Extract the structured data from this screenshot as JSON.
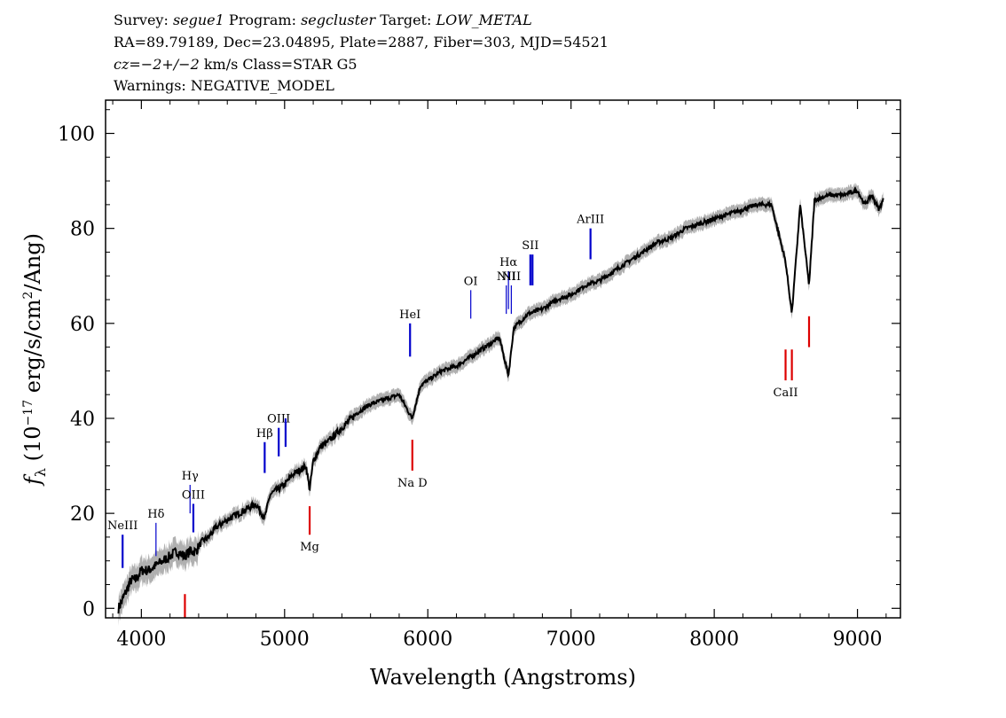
{
  "header": {
    "survey_label": "Survey:",
    "survey": "segue1",
    "program_label": "Program:",
    "program": "segcluster",
    "target_label": "Target:",
    "target": "LOW_METAL",
    "line2": "RA=89.79189, Dec=23.04895, Plate=2887, Fiber=303, MJD=54521",
    "cz_value": "cz=−2+/−2",
    "cz_rest": " km/s Class=STAR G5",
    "warnings": "Warnings: NEGATIVE_MODEL"
  },
  "colors": {
    "emission": "#0000cc",
    "absorption": "#dd0000",
    "spectrum": "#000000",
    "error_band": "#b0b0b0"
  },
  "chart_data": {
    "type": "line",
    "xlabel": "Wavelength (Angstroms)",
    "ylabel_main": "f",
    "ylabel_sub": "λ",
    "ylabel_rest": " (10",
    "ylabel_exp": "−17",
    "ylabel_tail": " erg/s/cm",
    "ylabel_exp2": "2",
    "ylabel_end": "/Ang)",
    "xlim": [
      3750,
      9300
    ],
    "ylim": [
      -2,
      107
    ],
    "xticks": [
      4000,
      5000,
      6000,
      7000,
      8000,
      9000
    ],
    "yticks": [
      0,
      20,
      40,
      60,
      80,
      100
    ],
    "series": [
      {
        "x": [
          3840,
          3870,
          3900,
          3930,
          3960,
          4000,
          4050,
          4100,
          4150,
          4200,
          4250,
          4300,
          4340,
          4380,
          4420,
          4470,
          4520,
          4570,
          4620,
          4680,
          4740,
          4800,
          4861,
          4900,
          4950,
          5000,
          5050,
          5100,
          5150,
          5175,
          5200,
          5250,
          5300,
          5400,
          5500,
          5600,
          5700,
          5800,
          5890,
          5950,
          6000,
          6100,
          6200,
          6300,
          6400,
          6500,
          6563,
          6600,
          6700,
          6800,
          6900,
          7000,
          7100,
          7200,
          7300,
          7400,
          7500,
          7600,
          7700,
          7800,
          7900,
          8000,
          8100,
          8200,
          8300,
          8400,
          8498,
          8542,
          8600,
          8662,
          8700,
          8800,
          8900,
          9000,
          9050,
          9100,
          9150,
          9180
        ],
        "y": [
          0,
          2,
          4,
          6,
          6,
          8,
          8,
          9,
          10,
          11,
          12,
          11,
          12,
          12,
          14,
          15,
          17,
          18,
          19,
          20,
          21,
          22,
          19,
          24,
          25,
          26,
          28,
          29,
          30,
          25,
          31,
          34,
          35,
          38,
          41,
          43,
          44,
          45,
          40,
          47,
          48,
          50,
          51,
          53,
          55,
          57,
          49,
          59,
          62,
          63,
          65,
          66,
          68,
          69,
          71,
          73,
          75,
          77,
          78,
          80,
          81,
          82,
          83,
          84,
          85,
          85,
          73,
          62,
          85,
          68,
          86,
          87,
          87,
          88,
          85,
          87,
          84,
          86
        ]
      }
    ],
    "emission_lines": [
      {
        "label": "NeIII",
        "x": 3869,
        "y1": 8.5,
        "y2": 15.5
      },
      {
        "label": "Hδ",
        "x": 4102,
        "y1": 11,
        "y2": 18
      },
      {
        "label": "Hγ",
        "x": 4340,
        "y1": 20,
        "y2": 26
      },
      {
        "label": "OIII",
        "x": 4363,
        "y1": 16,
        "y2": 22
      },
      {
        "label": "Hβ",
        "x": 4861,
        "y1": 28.5,
        "y2": 35
      },
      {
        "label": "OIII",
        "x": 4959,
        "y1": 32,
        "y2": 38
      },
      {
        "label": "",
        "x": 5007,
        "y1": 34,
        "y2": 40
      },
      {
        "label": "HeI",
        "x": 5876,
        "y1": 53,
        "y2": 60
      },
      {
        "label": "OI",
        "x": 6300,
        "y1": 61,
        "y2": 67
      },
      {
        "label": "NII",
        "x": 6548,
        "y1": 62,
        "y2": 68
      },
      {
        "label": "Hα",
        "x": 6563,
        "y1": 63,
        "y2": 71
      },
      {
        "label": "NII",
        "x": 6583,
        "y1": 62,
        "y2": 68
      },
      {
        "label": "SII",
        "x": 6716,
        "y1": 68,
        "y2": 74.5
      },
      {
        "label": "",
        "x": 6731,
        "y1": 68,
        "y2": 74.5
      },
      {
        "label": "ArIII",
        "x": 7136,
        "y1": 73.5,
        "y2": 80
      }
    ],
    "absorption_lines": [
      {
        "label": "",
        "x": 4304,
        "y1": -2,
        "y2": 3
      },
      {
        "label": "Mg",
        "x": 5175,
        "y1": 15.5,
        "y2": 21.5
      },
      {
        "label": "Na D",
        "x": 5892,
        "y1": 29,
        "y2": 35.5
      },
      {
        "label": "CaII",
        "x": 8498,
        "y1": 48,
        "y2": 54.5
      },
      {
        "label": "",
        "x": 8542,
        "y1": 48,
        "y2": 54.5
      },
      {
        "label": "",
        "x": 8662,
        "y1": 55,
        "y2": 61.5
      }
    ]
  }
}
